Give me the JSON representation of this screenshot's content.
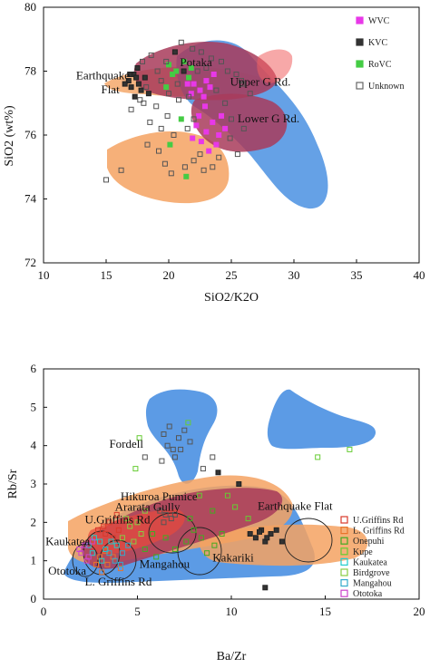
{
  "chart_data": [
    {
      "type": "scatter",
      "xlabel": "SiO2/K2O",
      "ylabel": "SiO2 (wt%)",
      "xlim": [
        10,
        40
      ],
      "ylim": [
        72,
        80
      ],
      "xticks": [
        "10",
        "15",
        "20",
        "25",
        "30",
        "35",
        "40"
      ],
      "yticks": [
        "72",
        "74",
        "76",
        "78",
        "80"
      ],
      "legend_position": "top-right",
      "legend": [
        {
          "name": "WVC",
          "color": "#e838e8",
          "marker": "filled"
        },
        {
          "name": "KVC",
          "color": "#333333",
          "marker": "filled"
        },
        {
          "name": "RoVC",
          "color": "#44cc44",
          "marker": "filled"
        },
        {
          "name": "Unknown",
          "color": "#666666",
          "marker": "open"
        }
      ],
      "field_labels": [
        {
          "text": "Earthquake",
          "x": 12.6,
          "y": 77.75
        },
        {
          "text": "Flat",
          "x": 14.6,
          "y": 77.3
        },
        {
          "text": "Potaka",
          "x": 20.9,
          "y": 78.15
        },
        {
          "text": "Upper G Rd.",
          "x": 24.9,
          "y": 77.55
        },
        {
          "text": "Lower G Rd.",
          "x": 25.5,
          "y": 76.4
        }
      ],
      "series": [
        {
          "name": "KVC",
          "points": [
            [
              16.8,
              77.7
            ],
            [
              17.2,
              77.9
            ],
            [
              17.0,
              77.5
            ],
            [
              17.5,
              78.1
            ],
            [
              16.5,
              77.6
            ],
            [
              17.8,
              77.4
            ],
            [
              17.3,
              77.2
            ],
            [
              18.1,
              77.8
            ],
            [
              16.9,
              77.9
            ],
            [
              17.6,
              77.6
            ],
            [
              18.4,
              77.3
            ],
            [
              20.5,
              78.6
            ],
            [
              21.2,
              78.0
            ],
            [
              17.4,
              77.8
            ]
          ]
        },
        {
          "name": "WVC",
          "points": [
            [
              22.0,
              77.6
            ],
            [
              22.5,
              77.4
            ],
            [
              23.0,
              77.7
            ],
            [
              21.8,
              77.3
            ],
            [
              22.8,
              77.2
            ],
            [
              23.3,
              77.5
            ],
            [
              21.5,
              77.6
            ],
            [
              22.2,
              76.3
            ],
            [
              23.0,
              76.1
            ],
            [
              23.5,
              76.4
            ],
            [
              24.0,
              76.0
            ],
            [
              22.6,
              75.8
            ],
            [
              23.8,
              75.7
            ],
            [
              24.5,
              76.2
            ],
            [
              21.9,
              75.9
            ],
            [
              23.2,
              75.5
            ],
            [
              24.2,
              76.6
            ],
            [
              22.4,
              76.6
            ],
            [
              23.6,
              77.9
            ],
            [
              22.9,
              76.9
            ]
          ]
        },
        {
          "name": "RoVC",
          "points": [
            [
              20.0,
              78.2
            ],
            [
              20.6,
              78.0
            ],
            [
              21.2,
              78.3
            ],
            [
              20.3,
              77.9
            ],
            [
              21.6,
              77.8
            ],
            [
              19.8,
              77.5
            ],
            [
              21.0,
              76.5
            ],
            [
              21.4,
              74.7
            ],
            [
              20.1,
              75.7
            ],
            [
              21.8,
              78.1
            ]
          ]
        },
        {
          "name": "Unknown",
          "points": [
            [
              15.0,
              74.6
            ],
            [
              16.2,
              74.9
            ],
            [
              17.0,
              76.8
            ],
            [
              18.0,
              77.0
            ],
            [
              18.5,
              76.4
            ],
            [
              19.0,
              76.9
            ],
            [
              19.4,
              76.2
            ],
            [
              19.9,
              76.6
            ],
            [
              20.4,
              76.0
            ],
            [
              20.8,
              77.1
            ],
            [
              21.5,
              76.2
            ],
            [
              22.0,
              76.5
            ],
            [
              18.3,
              75.7
            ],
            [
              19.7,
              75.1
            ],
            [
              22.5,
              75.4
            ],
            [
              23.5,
              75.0
            ],
            [
              24.0,
              75.3
            ],
            [
              20.2,
              74.8
            ],
            [
              21.3,
              75.0
            ],
            [
              22.8,
              74.9
            ],
            [
              25.5,
              75.4
            ],
            [
              25.0,
              76.5
            ],
            [
              24.5,
              77.0
            ],
            [
              23.8,
              77.4
            ],
            [
              25.8,
              77.7
            ],
            [
              25.4,
              77.9
            ],
            [
              24.2,
              78.3
            ],
            [
              23.4,
              78.4
            ],
            [
              22.6,
              78.6
            ],
            [
              21.9,
              78.7
            ],
            [
              21.0,
              78.9
            ],
            [
              19.8,
              78.3
            ],
            [
              19.1,
              78.0
            ],
            [
              18.6,
              78.5
            ],
            [
              18.2,
              77.5
            ],
            [
              17.7,
              77.1
            ],
            [
              17.9,
              78.3
            ],
            [
              19.4,
              77.7
            ],
            [
              20.0,
              77.3
            ],
            [
              20.7,
              77.6
            ],
            [
              21.6,
              77.2
            ],
            [
              22.3,
              78.0
            ],
            [
              23.0,
              78.1
            ],
            [
              24.7,
              78.0
            ],
            [
              25.9,
              77.6
            ],
            [
              26.5,
              77.3
            ],
            [
              24.9,
              75.9
            ],
            [
              26.0,
              76.2
            ],
            [
              22.0,
              75.2
            ],
            [
              19.2,
              75.5
            ]
          ]
        }
      ]
    },
    {
      "type": "scatter",
      "xlabel": "Ba/Zr",
      "ylabel": "Rb/Sr",
      "xlim": [
        0,
        20
      ],
      "ylim": [
        0,
        6
      ],
      "xticks": [
        "0",
        "5",
        "10",
        "15",
        "20"
      ],
      "yticks": [
        "0",
        "1",
        "2",
        "3",
        "4",
        "5",
        "6"
      ],
      "legend_position": "bottom-right",
      "legend": [
        {
          "name": "U.Griffins Rd",
          "color": "#d93a2b",
          "marker": "open"
        },
        {
          "name": "L. Griffins Rd",
          "color": "#e8742b",
          "marker": "open"
        },
        {
          "name": "Onepuhi",
          "color": "#44aa22",
          "marker": "open"
        },
        {
          "name": "Kupe",
          "color": "#66cc33",
          "marker": "open"
        },
        {
          "name": "Kaukatea",
          "color": "#22cccc",
          "marker": "open"
        },
        {
          "name": "Birdgrove",
          "color": "#88cc44",
          "marker": "open"
        },
        {
          "name": "Mangahou",
          "color": "#33aacc",
          "marker": "open"
        },
        {
          "name": "Ototoka",
          "color": "#cc44cc",
          "marker": "open"
        }
      ],
      "field_labels": [
        {
          "text": "Fordell",
          "x": 3.5,
          "y": 3.95
        },
        {
          "text": "Hikuroa Pumice",
          "x": 4.1,
          "y": 2.58
        },
        {
          "text": "Ararata Gully",
          "x": 3.8,
          "y": 2.3
        },
        {
          "text": "U.Griffins Rd",
          "x": 2.2,
          "y": 1.97
        },
        {
          "text": "Kaukatea",
          "x": 0.1,
          "y": 1.4
        },
        {
          "text": "Ototoka",
          "x": 0.25,
          "y": 0.64
        },
        {
          "text": "Mangahou",
          "x": 5.1,
          "y": 0.82
        },
        {
          "text": "L. Griffins Rd",
          "x": 2.2,
          "y": 0.36
        },
        {
          "text": "Kakariki",
          "x": 9.0,
          "y": 0.98
        },
        {
          "text": "Earthquake Flat",
          "x": 11.4,
          "y": 2.33
        }
      ],
      "series": [
        {
          "name": "Unknown",
          "points": [
            [
              5.4,
              3.7
            ],
            [
              6.4,
              4.3
            ],
            [
              6.6,
              4.0
            ],
            [
              6.9,
              3.9
            ],
            [
              7.2,
              4.2
            ],
            [
              7.5,
              4.4
            ],
            [
              7.8,
              4.1
            ],
            [
              6.3,
              3.6
            ],
            [
              7.0,
              3.7
            ],
            [
              6.7,
              4.5
            ],
            [
              7.3,
              3.9
            ],
            [
              8.5,
              3.4
            ],
            [
              9.0,
              3.7
            ],
            [
              6.2,
              2.3
            ],
            [
              6.5,
              2.2
            ],
            [
              6.8,
              2.1
            ],
            [
              6.4,
              2.0
            ],
            [
              7.0,
              2.2
            ]
          ]
        },
        {
          "name": "Earthquake Flat",
          "points": [
            [
              11.0,
              1.7
            ],
            [
              11.3,
              1.6
            ],
            [
              11.6,
              1.8
            ],
            [
              11.8,
              1.5
            ],
            [
              12.1,
              1.7
            ],
            [
              12.4,
              1.8
            ],
            [
              12.7,
              1.5
            ],
            [
              11.9,
              1.6
            ],
            [
              10.4,
              3.0
            ],
            [
              9.3,
              3.3
            ],
            [
              11.8,
              0.3
            ],
            [
              11.5,
              1.75
            ]
          ]
        },
        {
          "name": "U.Griffins Rd",
          "points": [
            [
              3.2,
              1.9
            ],
            [
              3.5,
              2.0
            ],
            [
              3.9,
              2.2
            ],
            [
              3.3,
              1.7
            ],
            [
              4.0,
              1.8
            ],
            [
              3.7,
              1.6
            ],
            [
              2.9,
              1.8
            ]
          ]
        },
        {
          "name": "L. Griffins Rd",
          "points": [
            [
              2.8,
              0.9
            ],
            [
              3.1,
              0.7
            ],
            [
              3.4,
              0.9
            ],
            [
              3.7,
              1.1
            ],
            [
              4.1,
              0.8
            ],
            [
              3.0,
              1.1
            ],
            [
              3.3,
              1.25
            ]
          ]
        },
        {
          "name": "Onepuhi",
          "points": [
            [
              5.4,
              1.3
            ],
            [
              6.0,
              1.1
            ],
            [
              6.5,
              1.6
            ],
            [
              7.0,
              1.3
            ],
            [
              7.6,
              1.5
            ],
            [
              8.0,
              1.8
            ],
            [
              8.4,
              1.6
            ],
            [
              9.1,
              1.4
            ],
            [
              9.5,
              1.7
            ],
            [
              5.8,
              1.7
            ],
            [
              7.8,
              2.1
            ],
            [
              9.0,
              2.3
            ],
            [
              8.7,
              1.2
            ]
          ]
        },
        {
          "name": "Kupe",
          "points": [
            [
              5.1,
              4.2
            ],
            [
              7.7,
              4.6
            ],
            [
              4.9,
              3.4
            ],
            [
              14.6,
              3.7
            ],
            [
              16.3,
              3.9
            ],
            [
              10.2,
              2.4
            ],
            [
              9.8,
              2.7
            ],
            [
              10.9,
              2.1
            ],
            [
              8.3,
              2.7
            ]
          ]
        },
        {
          "name": "Kaukatea",
          "points": [
            [
              2.4,
              1.4
            ],
            [
              2.7,
              1.6
            ],
            [
              3.0,
              1.5
            ],
            [
              3.3,
              1.3
            ],
            [
              3.6,
              1.5
            ],
            [
              3.9,
              1.4
            ],
            [
              3.1,
              1.0
            ],
            [
              2.6,
              1.2
            ]
          ]
        },
        {
          "name": "Birdgrove",
          "points": [
            [
              4.6,
              1.9
            ],
            [
              5.0,
              2.0
            ],
            [
              4.2,
              1.6
            ],
            [
              4.8,
              1.5
            ],
            [
              5.4,
              2.3
            ],
            [
              4.4,
              2.1
            ],
            [
              5.2,
              1.7
            ]
          ]
        },
        {
          "name": "Mangahou",
          "points": [
            [
              3.8,
              1.0
            ],
            [
              4.2,
              1.2
            ],
            [
              4.5,
              1.4
            ],
            [
              3.5,
              1.2
            ],
            [
              4.1,
              0.9
            ]
          ]
        },
        {
          "name": "Ototoka",
          "points": [
            [
              2.0,
              1.2
            ],
            [
              2.2,
              1.4
            ],
            [
              2.4,
              1.1
            ],
            [
              1.9,
              1.3
            ],
            [
              2.6,
              1.5
            ],
            [
              2.3,
              1.0
            ]
          ]
        }
      ]
    }
  ]
}
